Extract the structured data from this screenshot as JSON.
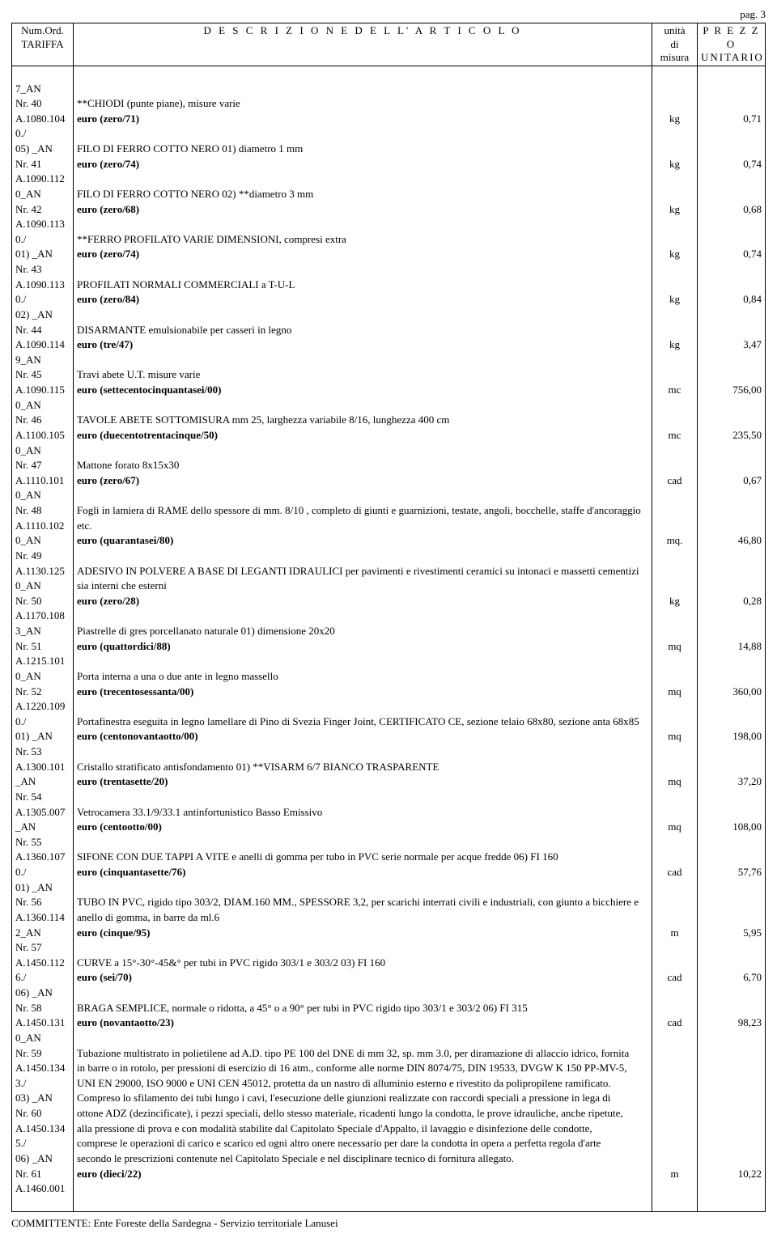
{
  "page_number_label": "pag. 3",
  "header": {
    "tariffa_line1": "Num.Ord.",
    "tariffa_line2": "TARIFFA",
    "descrizione": "D E S C R I Z I O N E   D E L L' A R T I C O L O",
    "unita_line1": "unità",
    "unita_line2": "di",
    "unita_line3": "misura",
    "prezzo_line1": "P R E Z Z O",
    "prezzo_line2": "UNITARIO"
  },
  "footer": "COMMITTENTE: Ente Foreste della Sardegna - Servizio territoriale Lanusei",
  "rows": [
    {
      "tariffa": "7_AN",
      "desc": "",
      "unit": "",
      "price": ""
    },
    {
      "tariffa": "Nr. 40",
      "desc": "**CHIODI (punte piane), misure varie",
      "unit": "",
      "price": ""
    },
    {
      "tariffa": "A.1080.104",
      "desc": "euro (zero/71)",
      "bold": true,
      "unit": "kg",
      "price": "0,71"
    },
    {
      "tariffa": "0./",
      "desc": "",
      "unit": "",
      "price": ""
    },
    {
      "tariffa": "05) _AN",
      "desc": "FILO DI FERRO COTTO NERO 01) diametro 1 mm",
      "unit": "",
      "price": ""
    },
    {
      "tariffa": "Nr. 41",
      "desc": "euro (zero/74)",
      "bold": true,
      "unit": "kg",
      "price": "0,74"
    },
    {
      "tariffa": "A.1090.112",
      "desc": "",
      "unit": "",
      "price": ""
    },
    {
      "tariffa": "0_AN",
      "desc": "FILO DI FERRO COTTO NERO 02) **diametro 3 mm",
      "unit": "",
      "price": ""
    },
    {
      "tariffa": "Nr. 42",
      "desc": "euro (zero/68)",
      "bold": true,
      "unit": "kg",
      "price": "0,68"
    },
    {
      "tariffa": "A.1090.113",
      "desc": "",
      "unit": "",
      "price": ""
    },
    {
      "tariffa": "0./",
      "desc": "**FERRO PROFILATO VARIE DIMENSIONI, compresi extra",
      "unit": "",
      "price": ""
    },
    {
      "tariffa": "01) _AN",
      "desc": "euro (zero/74)",
      "bold": true,
      "unit": "kg",
      "price": "0,74"
    },
    {
      "tariffa": "Nr. 43",
      "desc": "",
      "unit": "",
      "price": ""
    },
    {
      "tariffa": "A.1090.113",
      "desc": "PROFILATI NORMALI COMMERCIALI a T-U-L",
      "unit": "",
      "price": ""
    },
    {
      "tariffa": "0./",
      "desc": "euro (zero/84)",
      "bold": true,
      "unit": "kg",
      "price": "0,84"
    },
    {
      "tariffa": "02) _AN",
      "desc": "",
      "unit": "",
      "price": ""
    },
    {
      "tariffa": "Nr. 44",
      "desc": "DISARMANTE emulsionabile per casseri in legno",
      "unit": "",
      "price": ""
    },
    {
      "tariffa": "A.1090.114",
      "desc": "euro (tre/47)",
      "bold": true,
      "unit": "kg",
      "price": "3,47"
    },
    {
      "tariffa": "9_AN",
      "desc": "",
      "unit": "",
      "price": ""
    },
    {
      "tariffa": "Nr. 45",
      "desc": "Travi abete U.T. misure varie",
      "unit": "",
      "price": ""
    },
    {
      "tariffa": "A.1090.115",
      "desc": "euro (settecentocinquantasei/00)",
      "bold": true,
      "unit": "mc",
      "price": "756,00"
    },
    {
      "tariffa": "0_AN",
      "desc": "",
      "unit": "",
      "price": ""
    },
    {
      "tariffa": "Nr. 46",
      "desc": "TAVOLE ABETE SOTTOMISURA mm 25, larghezza variabile 8/16, lunghezza 400 cm",
      "unit": "",
      "price": ""
    },
    {
      "tariffa": "A.1100.105",
      "desc": "euro (duecentotrentacinque/50)",
      "bold": true,
      "unit": "mc",
      "price": "235,50"
    },
    {
      "tariffa": "0_AN",
      "desc": "",
      "unit": "",
      "price": ""
    },
    {
      "tariffa": "Nr. 47",
      "desc": "Mattone forato 8x15x30",
      "unit": "",
      "price": ""
    },
    {
      "tariffa": "A.1110.101",
      "desc": "euro (zero/67)",
      "bold": true,
      "unit": "cad",
      "price": "0,67"
    },
    {
      "tariffa": "0_AN",
      "desc": "",
      "unit": "",
      "price": ""
    },
    {
      "tariffa": "Nr. 48",
      "desc": "Fogli in lamiera di RAME dello spessore di mm. 8/10 , completo di giunti e guarnizioni, testate, angoli, bocchelle, staffe d'ancoraggio",
      "unit": "",
      "price": ""
    },
    {
      "tariffa": "A.1110.102",
      "desc": "etc.",
      "unit": "",
      "price": ""
    },
    {
      "tariffa": "0_AN",
      "desc": "euro (quarantasei/80)",
      "bold": true,
      "unit": "mq.",
      "price": "46,80"
    },
    {
      "tariffa": "Nr. 49",
      "desc": "",
      "unit": "",
      "price": ""
    },
    {
      "tariffa": "A.1130.125",
      "desc": "ADESIVO IN POLVERE A BASE DI LEGANTI IDRAULICI per pavimenti e rivestimenti ceramici su intonaci e massetti cementizi",
      "unit": "",
      "price": ""
    },
    {
      "tariffa": "0_AN",
      "desc": "sia interni che esterni",
      "unit": "",
      "price": ""
    },
    {
      "tariffa": "Nr. 50",
      "desc": "euro (zero/28)",
      "bold": true,
      "unit": "kg",
      "price": "0,28"
    },
    {
      "tariffa": "A.1170.108",
      "desc": "",
      "unit": "",
      "price": ""
    },
    {
      "tariffa": "3_AN",
      "desc": "Piastrelle di gres porcellanato naturale 01) dimensione 20x20",
      "unit": "",
      "price": ""
    },
    {
      "tariffa": "Nr. 51",
      "desc": "euro (quattordici/88)",
      "bold": true,
      "unit": "mq",
      "price": "14,88"
    },
    {
      "tariffa": "A.1215.101",
      "desc": "",
      "unit": "",
      "price": ""
    },
    {
      "tariffa": "0_AN",
      "desc": "Porta interna a una o due ante in legno massello",
      "unit": "",
      "price": ""
    },
    {
      "tariffa": "Nr. 52",
      "desc": "euro (trecentosessanta/00)",
      "bold": true,
      "unit": "mq",
      "price": "360,00"
    },
    {
      "tariffa": "A.1220.109",
      "desc": "",
      "unit": "",
      "price": ""
    },
    {
      "tariffa": "0./",
      "desc": "Portafinestra eseguita in legno lamellare di Pino di Svezia Finger Joint, CERTIFICATO CE, sezione telaio 68x80, sezione anta 68x85",
      "unit": "",
      "price": ""
    },
    {
      "tariffa": "01) _AN",
      "desc": "euro (centonovantaotto/00)",
      "bold": true,
      "unit": "mq",
      "price": "198,00"
    },
    {
      "tariffa": "Nr. 53",
      "desc": "",
      "unit": "",
      "price": ""
    },
    {
      "tariffa": "A.1300.101",
      "desc": "Cristallo stratificato antisfondamento 01) **VISARM 6/7 BIANCO TRASPARENTE",
      "unit": "",
      "price": ""
    },
    {
      "tariffa": "_AN",
      "desc": "euro (trentasette/20)",
      "bold": true,
      "unit": "mq",
      "price": "37,20"
    },
    {
      "tariffa": "Nr. 54",
      "desc": "",
      "unit": "",
      "price": ""
    },
    {
      "tariffa": "A.1305.007",
      "desc": "Vetrocamera 33.1/9/33.1 antinfortunistico Basso Emissivo",
      "unit": "",
      "price": ""
    },
    {
      "tariffa": "_AN",
      "desc": "euro (centootto/00)",
      "bold": true,
      "unit": "mq",
      "price": "108,00"
    },
    {
      "tariffa": "Nr. 55",
      "desc": "",
      "unit": "",
      "price": ""
    },
    {
      "tariffa": "A.1360.107",
      "desc": "SIFONE CON DUE TAPPI A VITE e anelli di gomma per tubo in PVC serie normale per acque fredde 06) FI 160",
      "unit": "",
      "price": ""
    },
    {
      "tariffa": "0./",
      "desc": "euro (cinquantasette/76)",
      "bold": true,
      "unit": "cad",
      "price": "57,76"
    },
    {
      "tariffa": "01) _AN",
      "desc": "",
      "unit": "",
      "price": ""
    },
    {
      "tariffa": "Nr. 56",
      "desc": "TUBO IN PVC, rigido tipo 303/2, DIAM.160 MM., SPESSORE 3,2, per scarichi interrati civili e industriali, con giunto a bicchiere e",
      "unit": "",
      "price": ""
    },
    {
      "tariffa": "A.1360.114",
      "desc": "anello di gomma, in barre da ml.6",
      "unit": "",
      "price": ""
    },
    {
      "tariffa": "2_AN",
      "desc": "euro (cinque/95)",
      "bold": true,
      "unit": "m",
      "price": "5,95"
    },
    {
      "tariffa": "Nr. 57",
      "desc": "",
      "unit": "",
      "price": ""
    },
    {
      "tariffa": "A.1450.112",
      "desc": "CURVE a 15°-30°-45&° per tubi in PVC rigido 303/1 e 303/2 03) FI 160",
      "unit": "",
      "price": ""
    },
    {
      "tariffa": "6./",
      "desc": "euro (sei/70)",
      "bold": true,
      "unit": "cad",
      "price": "6,70"
    },
    {
      "tariffa": "06) _AN",
      "desc": "",
      "unit": "",
      "price": ""
    },
    {
      "tariffa": "Nr. 58",
      "desc": "BRAGA SEMPLICE, normale o ridotta, a 45° o a 90° per tubi in PVC rigido tipo 303/1 e 303/2 06) FI 315",
      "unit": "",
      "price": ""
    },
    {
      "tariffa": "A.1450.131",
      "desc": "euro (novantaotto/23)",
      "bold": true,
      "unit": "cad",
      "price": "98,23"
    },
    {
      "tariffa": "0_AN",
      "desc": "",
      "unit": "",
      "price": ""
    },
    {
      "tariffa": "Nr. 59",
      "desc": "Tubazione multistrato in polietilene ad A.D. tipo PE 100 del DNE di mm 32, sp. mm 3.0, per diramazione di allaccio idrico, fornita",
      "justify": true,
      "unit": "",
      "price": ""
    },
    {
      "tariffa": "A.1450.134",
      "desc": "in barre o in rotolo, per pressioni di esercizio di 16 atm., conforme alle norme DIN 8074/75, DIN 19533, DVGW K 150 PP-MV-5,",
      "justify": true,
      "unit": "",
      "price": ""
    },
    {
      "tariffa": "3./",
      "desc": "UNI EN 29000, ISO 9000 e UNI CEN 45012, protetta da un nastro di alluminio esterno e rivestito da polipropilene ramificato.",
      "justify": true,
      "unit": "",
      "price": ""
    },
    {
      "tariffa": "03) _AN",
      "desc": "Compreso lo sfilamento dei tubi lungo i cavi, l'esecuzione delle giunzioni realizzate con raccordi speciali a pressione in lega di",
      "justify": true,
      "unit": "",
      "price": ""
    },
    {
      "tariffa": "Nr. 60",
      "desc": "ottone ADZ (dezincificate), i pezzi speciali, dello stesso materiale, ricadenti lungo la condotta, le prove idrauliche, anche ripetute,",
      "justify": true,
      "unit": "",
      "price": ""
    },
    {
      "tariffa": "A.1450.134",
      "desc": "alla pressione di prova e con modalità stabilite dal Capitolato Speciale d'Appalto, il lavaggio e disinfezione delle condotte,",
      "justify": true,
      "unit": "",
      "price": ""
    },
    {
      "tariffa": "5./",
      "desc": "comprese le operazioni di carico e scarico ed ogni altro onere necessario per dare la condotta in opera a perfetta regola d'arte",
      "justify": true,
      "unit": "",
      "price": ""
    },
    {
      "tariffa": "06) _AN",
      "desc": "secondo le prescrizioni contenute nel Capitolato Speciale e nel disciplinare tecnico di fornitura allegato.",
      "unit": "",
      "price": ""
    },
    {
      "tariffa": "Nr. 61",
      "desc": "euro (dieci/22)",
      "bold": true,
      "unit": "m",
      "price": "10,22"
    },
    {
      "tariffa": "A.1460.001",
      "desc": "",
      "unit": "",
      "price": ""
    }
  ]
}
